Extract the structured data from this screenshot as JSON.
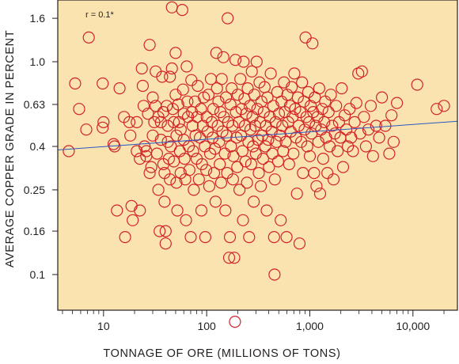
{
  "chart_data": {
    "type": "scatter",
    "title": "",
    "xlabel": "TONNAGE OF ORE (MILLIONS OF TONS)",
    "ylabel": "AVERAGE COPPER GRADE IN PERCENT",
    "x_scale": "log",
    "y_scale": "log",
    "xlim": [
      3.6,
      27000
    ],
    "ylim": [
      0.068,
      1.95
    ],
    "x_ticks": [
      {
        "value": 10,
        "label": "10"
      },
      {
        "value": 100,
        "label": "100"
      },
      {
        "value": 1000,
        "label": "1,000"
      },
      {
        "value": 10000,
        "label": "10,000"
      }
    ],
    "y_ticks": [
      {
        "value": 0.1,
        "label": "0.1"
      },
      {
        "value": 0.16,
        "label": "0.16"
      },
      {
        "value": 0.25,
        "label": "0.25"
      },
      {
        "value": 0.4,
        "label": "0.4"
      },
      {
        "value": 0.63,
        "label": "0.63"
      },
      {
        "value": 1.0,
        "label": "1.0"
      },
      {
        "value": 1.6,
        "label": "1.6"
      }
    ],
    "annotation": "r = 0.1*",
    "grid": false,
    "colors": {
      "background": "#fbe3b0",
      "marker": "#d2232a",
      "trend": "#2b59c3",
      "axis": "#231f20"
    },
    "trend_line": {
      "x": [
        3.6,
        27000
      ],
      "y": [
        0.385,
        0.525
      ]
    },
    "series": [
      {
        "marker": "open-circle",
        "points": [
          [
            4.6,
            0.38
          ],
          [
            5.3,
            0.79
          ],
          [
            5.8,
            0.6
          ],
          [
            6.8,
            0.48
          ],
          [
            7.2,
            1.3
          ],
          [
            9.8,
            0.79
          ],
          [
            9.8,
            0.49
          ],
          [
            10,
            0.52
          ],
          [
            12.5,
            0.41
          ],
          [
            12.8,
            0.4
          ],
          [
            13.5,
            0.2
          ],
          [
            14.3,
            0.75
          ],
          [
            15.8,
            0.55
          ],
          [
            16.2,
            0.15
          ],
          [
            17.8,
            0.52
          ],
          [
            18.2,
            0.45
          ],
          [
            18.7,
            0.21
          ],
          [
            19.2,
            0.18
          ],
          [
            21,
            0.52
          ],
          [
            21,
            0.38
          ],
          [
            22.5,
            0.35
          ],
          [
            22.5,
            0.2
          ],
          [
            23.5,
            0.93
          ],
          [
            24,
            0.77
          ],
          [
            24.5,
            0.62
          ],
          [
            25,
            0.4
          ],
          [
            26,
            0.38
          ],
          [
            26,
            0.36
          ],
          [
            27,
            0.57
          ],
          [
            28,
            0.3
          ],
          [
            28,
            1.2
          ],
          [
            29,
            0.32
          ],
          [
            30,
            0.68
          ],
          [
            30,
            0.45
          ],
          [
            31,
            0.52
          ],
          [
            32,
            0.9
          ],
          [
            32,
            0.62
          ],
          [
            33,
            0.37
          ],
          [
            34,
            0.55
          ],
          [
            34,
            0.25
          ],
          [
            35,
            0.16
          ],
          [
            36,
            0.52
          ],
          [
            36,
            0.43
          ],
          [
            37,
            0.85
          ],
          [
            38,
            0.58
          ],
          [
            38,
            0.33
          ],
          [
            39,
            0.3
          ],
          [
            39,
            0.22
          ],
          [
            40,
            0.16
          ],
          [
            40,
            0.14
          ],
          [
            41,
            0.62
          ],
          [
            42,
            0.5
          ],
          [
            42,
            0.42
          ],
          [
            43,
            0.35
          ],
          [
            44,
            0.28
          ],
          [
            44,
            0.85
          ],
          [
            45,
            0.4
          ],
          [
            46,
            1.8
          ],
          [
            46,
            0.93
          ],
          [
            47,
            0.6
          ],
          [
            48,
            0.52
          ],
          [
            48,
            0.34
          ],
          [
            50,
            0.7
          ],
          [
            50,
            1.1
          ],
          [
            51,
            0.45
          ],
          [
            51,
            0.27
          ],
          [
            52,
            0.2
          ],
          [
            53,
            0.63
          ],
          [
            54,
            0.52
          ],
          [
            55,
            0.38
          ],
          [
            56,
            0.3
          ],
          [
            56,
            0.48
          ],
          [
            58,
            1.75
          ],
          [
            59,
            0.74
          ],
          [
            60,
            0.57
          ],
          [
            60,
            0.43
          ],
          [
            61,
            0.35
          ],
          [
            62,
            0.28
          ],
          [
            63,
            0.18
          ],
          [
            64,
            0.95
          ],
          [
            65,
            0.65
          ],
          [
            66,
            0.55
          ],
          [
            67,
            0.4
          ],
          [
            68,
            0.31
          ],
          [
            70,
            0.15
          ],
          [
            71,
            0.82
          ],
          [
            72,
            0.58
          ],
          [
            73,
            0.5
          ],
          [
            74,
            0.38
          ],
          [
            75,
            0.25
          ],
          [
            77,
            0.65
          ],
          [
            78,
            0.45
          ],
          [
            80,
            0.35
          ],
          [
            81,
            0.55
          ],
          [
            82,
            0.77
          ],
          [
            84,
            0.28
          ],
          [
            86,
            0.44
          ],
          [
            88,
            0.6
          ],
          [
            89,
            0.2
          ],
          [
            90,
            0.33
          ],
          [
            92,
            0.5
          ],
          [
            94,
            0.68
          ],
          [
            96,
            0.4
          ],
          [
            97,
            0.15
          ],
          [
            99,
            0.31
          ],
          [
            100,
            0.55
          ],
          [
            102,
            0.47
          ],
          [
            104,
            0.7
          ],
          [
            106,
            0.26
          ],
          [
            108,
            0.37
          ],
          [
            110,
            0.83
          ],
          [
            112,
            0.52
          ],
          [
            114,
            0.44
          ],
          [
            116,
            0.6
          ],
          [
            118,
            0.3
          ],
          [
            120,
            0.39
          ],
          [
            122,
            0.22
          ],
          [
            124,
            1.1
          ],
          [
            126,
            0.75
          ],
          [
            128,
            0.5
          ],
          [
            130,
            0.65
          ],
          [
            132,
            0.42
          ],
          [
            134,
            0.33
          ],
          [
            136,
            0.58
          ],
          [
            138,
            0.27
          ],
          [
            140,
            0.83
          ],
          [
            142,
            0.47
          ],
          [
            145,
            1.05
          ],
          [
            147,
            0.55
          ],
          [
            150,
            0.37
          ],
          [
            152,
            0.2
          ],
          [
            154,
            0.68
          ],
          [
            156,
            0.45
          ],
          [
            158,
            0.3
          ],
          [
            160,
            1.6
          ],
          [
            162,
            0.52
          ],
          [
            165,
            0.12
          ],
          [
            168,
            0.15
          ],
          [
            170,
            0.63
          ],
          [
            172,
            0.4
          ],
          [
            175,
            0.75
          ],
          [
            178,
            0.5
          ],
          [
            180,
            0.28
          ],
          [
            182,
            0.36
          ],
          [
            185,
            0.12
          ],
          [
            188,
            0.06
          ],
          [
            190,
            1.02
          ],
          [
            192,
            0.58
          ],
          [
            195,
            0.44
          ],
          [
            198,
            0.32
          ],
          [
            200,
            0.7
          ],
          [
            205,
            0.52
          ],
          [
            208,
            0.25
          ],
          [
            212,
            0.83
          ],
          [
            215,
            0.45
          ],
          [
            218,
            0.6
          ],
          [
            222,
            0.38
          ],
          [
            225,
            0.18
          ],
          [
            228,
            1.0
          ],
          [
            232,
            0.67
          ],
          [
            235,
            0.5
          ],
          [
            238,
            0.34
          ],
          [
            242,
            0.57
          ],
          [
            246,
            0.27
          ],
          [
            250,
            0.75
          ],
          [
            254,
            0.42
          ],
          [
            258,
            0.15
          ],
          [
            262,
            0.62
          ],
          [
            266,
            0.48
          ],
          [
            270,
            0.33
          ],
          [
            274,
            0.9
          ],
          [
            278,
            0.55
          ],
          [
            282,
            0.4
          ],
          [
            286,
            0.22
          ],
          [
            290,
            0.7
          ],
          [
            295,
            0.5
          ],
          [
            300,
            0.37
          ],
          [
            305,
            1.0
          ],
          [
            310,
            0.6
          ],
          [
            315,
            0.43
          ],
          [
            320,
            0.3
          ],
          [
            325,
            0.8
          ],
          [
            330,
            0.52
          ],
          [
            335,
            0.26
          ],
          [
            340,
            0.65
          ],
          [
            346,
            0.45
          ],
          [
            352,
            0.35
          ],
          [
            358,
            0.58
          ],
          [
            364,
            0.76
          ],
          [
            370,
            0.4
          ],
          [
            376,
            0.5
          ],
          [
            382,
            0.2
          ],
          [
            388,
            0.68
          ],
          [
            395,
            0.43
          ],
          [
            402,
            0.32
          ],
          [
            410,
            0.55
          ],
          [
            418,
            0.88
          ],
          [
            426,
            0.47
          ],
          [
            434,
            0.37
          ],
          [
            442,
            0.62
          ],
          [
            450,
            0.15
          ],
          [
            455,
            0.1
          ],
          [
            458,
            0.28
          ],
          [
            466,
            0.52
          ],
          [
            475,
            0.42
          ],
          [
            484,
            0.72
          ],
          [
            493,
            0.34
          ],
          [
            502,
            0.57
          ],
          [
            512,
            0.45
          ],
          [
            522,
            0.18
          ],
          [
            532,
            0.65
          ],
          [
            542,
            0.5
          ],
          [
            552,
            0.38
          ],
          [
            562,
            0.8
          ],
          [
            573,
            0.58
          ],
          [
            584,
            0.42
          ],
          [
            595,
            0.15
          ],
          [
            606,
            0.7
          ],
          [
            618,
            0.52
          ],
          [
            630,
            0.33
          ],
          [
            642,
            0.62
          ],
          [
            655,
            0.47
          ],
          [
            668,
            0.76
          ],
          [
            681,
            0.55
          ],
          [
            694,
            0.37
          ],
          [
            708,
            0.88
          ],
          [
            722,
            0.6
          ],
          [
            736,
            0.44
          ],
          [
            750,
            0.24
          ],
          [
            765,
            0.68
          ],
          [
            780,
            0.5
          ],
          [
            795,
            0.14
          ],
          [
            810,
            0.58
          ],
          [
            826,
            0.42
          ],
          [
            842,
            0.8
          ],
          [
            858,
            0.3
          ],
          [
            875,
            0.65
          ],
          [
            892,
            0.48
          ],
          [
            910,
            1.3
          ],
          [
            928,
            0.55
          ],
          [
            946,
            0.4
          ],
          [
            965,
            0.72
          ],
          [
            984,
            0.52
          ],
          [
            1000,
            0.36
          ],
          [
            1020,
            0.62
          ],
          [
            1040,
            0.46
          ],
          [
            1060,
            1.22
          ],
          [
            1080,
            0.58
          ],
          [
            1100,
            0.3
          ],
          [
            1120,
            0.68
          ],
          [
            1140,
            0.5
          ],
          [
            1160,
            0.26
          ],
          [
            1185,
            0.55
          ],
          [
            1210,
            0.42
          ],
          [
            1235,
            0.75
          ],
          [
            1260,
            0.24
          ],
          [
            1290,
            0.48
          ],
          [
            1320,
            0.6
          ],
          [
            1350,
            0.35
          ],
          [
            1380,
            0.52
          ],
          [
            1410,
            0.65
          ],
          [
            1440,
            0.44
          ],
          [
            1480,
            0.3
          ],
          [
            1520,
            0.58
          ],
          [
            1560,
            0.4
          ],
          [
            1600,
            0.7
          ],
          [
            1650,
            0.5
          ],
          [
            1700,
            0.28
          ],
          [
            1750,
            0.46
          ],
          [
            1800,
            0.62
          ],
          [
            1860,
            0.38
          ],
          [
            1920,
            0.52
          ],
          [
            1980,
            0.44
          ],
          [
            2040,
            0.75
          ],
          [
            2100,
            0.32
          ],
          [
            2180,
            0.56
          ],
          [
            2260,
            0.48
          ],
          [
            2340,
            0.4
          ],
          [
            2430,
            0.6
          ],
          [
            2520,
            0.44
          ],
          [
            2620,
            0.38
          ],
          [
            2720,
            0.52
          ],
          [
            2830,
            0.64
          ],
          [
            2950,
            0.88
          ],
          [
            3080,
            0.46
          ],
          [
            3200,
            0.9
          ],
          [
            3350,
            0.55
          ],
          [
            3500,
            0.4
          ],
          [
            3700,
            0.48
          ],
          [
            3900,
            0.62
          ],
          [
            4100,
            0.36
          ],
          [
            4400,
            0.5
          ],
          [
            4700,
            0.44
          ],
          [
            5000,
            0.68
          ],
          [
            5400,
            0.5
          ],
          [
            5900,
            0.37
          ],
          [
            6200,
            0.56
          ],
          [
            6500,
            0.42
          ],
          [
            7000,
            0.64
          ],
          [
            11000,
            0.78
          ],
          [
            17000,
            0.6
          ],
          [
            20000,
            0.62
          ]
        ]
      }
    ]
  }
}
